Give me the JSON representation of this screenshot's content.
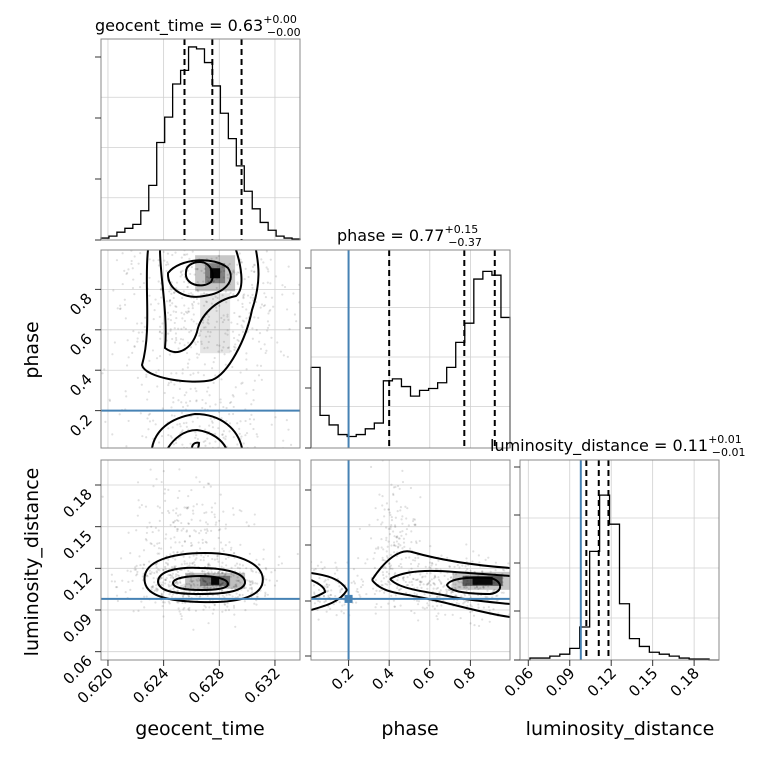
{
  "chart_data": {
    "type": "corner",
    "parameters": [
      "geocent_time",
      "phase",
      "luminosity_distance"
    ],
    "titles": [
      {
        "param": "geocent_time",
        "text": "geocent_time = 0.63",
        "upper": "+0.00",
        "lower": "−0.00"
      },
      {
        "param": "phase",
        "text": "phase = 0.77",
        "upper": "+0.15",
        "lower": "−0.37"
      },
      {
        "param": "luminosity_distance",
        "text": "luminosity_distance = 0.11",
        "upper": "+0.01",
        "lower": "−0.01"
      }
    ],
    "injection": {
      "phase": 0.2,
      "luminosity_distance": 0.098
    },
    "injection_color": "#4682b4",
    "ranges": {
      "geocent_time": [
        0.6195,
        0.6338
      ],
      "phase": [
        0.015,
        0.995
      ],
      "luminosity_distance": [
        0.054,
        0.198
      ]
    },
    "ticks": {
      "geocent_time": {
        "values": [
          0.62,
          0.624,
          0.628,
          0.632
        ],
        "labels": [
          "0.620",
          "0.624",
          "0.628",
          "0.632"
        ]
      },
      "phase": {
        "values": [
          0.2,
          0.4,
          0.6,
          0.8
        ],
        "labels": [
          "0.2",
          "0.4",
          "0.6",
          "0.8"
        ]
      },
      "luminosity_distance": {
        "values": [
          0.06,
          0.09,
          0.12,
          0.15,
          0.18
        ],
        "labels": [
          "0.06",
          "0.09",
          "0.12",
          "0.15",
          "0.18"
        ]
      }
    },
    "histograms": {
      "geocent_time": {
        "bins": [
          0.6195,
          0.6338
        ],
        "counts": [
          0.01,
          0.02,
          0.04,
          0.06,
          0.08,
          0.15,
          0.28,
          0.5,
          0.63,
          0.8,
          0.87,
          0.99,
          0.98,
          0.91,
          0.79,
          0.65,
          0.52,
          0.38,
          0.25,
          0.16,
          0.09,
          0.05,
          0.02,
          0.01,
          0.005
        ],
        "quantiles": [
          0.6255,
          0.6275,
          0.6296
        ]
      },
      "phase": {
        "bins": [
          0.015,
          0.995
        ],
        "counts": [
          0.42,
          0.17,
          0.12,
          0.07,
          0.06,
          0.07,
          0.1,
          0.13,
          0.35,
          0.36,
          0.32,
          0.27,
          0.3,
          0.31,
          0.34,
          0.42,
          0.55,
          0.65,
          0.88,
          0.92,
          0.9,
          0.68
        ],
        "quantiles": [
          0.4,
          0.77,
          0.92
        ]
      },
      "luminosity_distance": {
        "bins": [
          0.054,
          0.198
        ],
        "counts": [
          0.0,
          0.01,
          0.01,
          0.02,
          0.03,
          0.06,
          0.17,
          0.56,
          0.85,
          0.7,
          0.29,
          0.11,
          0.07,
          0.04,
          0.03,
          0.02,
          0.01,
          0.005,
          0.005,
          0.0
        ],
        "quantiles": [
          0.102,
          0.111,
          0.118
        ]
      }
    },
    "peaks": {
      "phase_vs_geocent_time": [
        0.6277,
        0.88
      ],
      "luminosity_distance_vs_geocent_time": [
        0.6277,
        0.111
      ],
      "luminosity_distance_vs_phase": [
        0.86,
        0.111
      ]
    },
    "grid": true
  }
}
